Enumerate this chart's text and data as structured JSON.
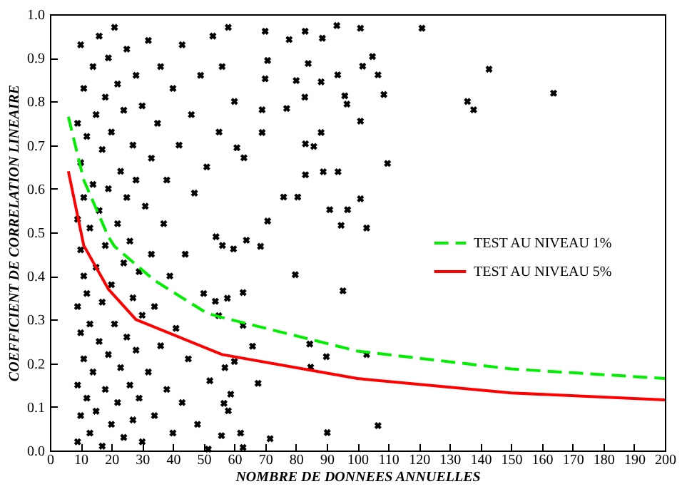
{
  "chart_data": {
    "type": "scatter",
    "xlabel": "NOMBRE DE DONNEES ANNUELLES",
    "ylabel": "COEFFICIENT DE CORRELATION LINEAIRE",
    "xlim": [
      0,
      200
    ],
    "ylim": [
      0,
      1
    ],
    "xticks": [
      0,
      10,
      20,
      30,
      40,
      50,
      60,
      70,
      80,
      90,
      100,
      110,
      120,
      130,
      140,
      150,
      160,
      170,
      180,
      190,
      200
    ],
    "yticks": [
      {
        "value": 0,
        "label": "0.0"
      },
      0.1,
      0.2,
      0.3,
      0.4,
      0.5,
      0.6,
      0.7,
      0.8,
      0.9,
      {
        "value": 1,
        "label": "1.0"
      }
    ],
    "grid": false,
    "legend": "right",
    "series": [
      {
        "type": "scatter",
        "marker": "cross",
        "color": "#000000",
        "x": [
          93.3,
          101,
          121,
          142.8,
          163.8,
          135.8,
          137.8,
          108.6,
          106.7,
          104.9,
          101.7,
          95.9,
          96.6,
          101,
          109.8,
          88.2,
          83.1,
          85.8,
          83.1,
          88.9,
          93.7,
          101,
          91,
          96.8,
          94.7,
          103,
          70.8,
          76,
          80.6,
          88.2,
          93.6,
          82.9,
          77,
          69,
          69,
          70,
          63.1,
          60.8,
          84,
          88.6,
          83,
          70.8,
          70,
          77.8,
          80.1,
          56.1,
          59.7,
          63.9,
          68.5,
          79.8,
          95.3,
          62.8,
          57.7,
          53.8,
          54.9,
          62.8,
          65.9,
          84.5,
          89.9,
          103,
          56.9,
          60,
          84.8,
          67.7,
          58.8,
          56.6,
          58,
          106.7,
          55.8,
          62,
          71.6,
          90.2,
          62.8,
          51.5,
          9,
          10,
          9,
          11,
          10,
          9,
          11,
          10,
          9,
          11,
          10,
          9,
          11,
          10,
          12,
          12,
          12,
          13,
          13,
          13,
          14,
          14,
          14,
          15,
          15,
          15,
          16,
          16,
          16,
          17,
          17,
          17,
          18,
          18,
          18,
          19,
          19,
          19,
          20,
          20,
          20,
          21,
          21,
          22,
          22,
          22,
          23,
          23,
          24,
          24,
          24,
          25,
          25,
          25,
          26,
          26,
          27,
          27,
          27,
          28,
          28,
          28,
          29,
          29,
          30,
          30,
          30,
          31,
          32,
          32,
          33,
          33,
          34,
          34,
          35,
          36,
          36,
          37,
          38,
          38,
          39,
          40,
          40,
          41,
          42,
          43,
          43,
          44,
          45,
          46,
          47,
          48,
          49,
          50,
          51,
          52,
          53,
          54,
          55,
          56,
          58,
          60
        ],
        "values": [
          0.974,
          0.968,
          0.968,
          0.874,
          0.819,
          0.8,
          0.781,
          0.816,
          0.861,
          0.903,
          0.881,
          0.813,
          0.794,
          0.755,
          0.658,
          0.729,
          0.703,
          0.697,
          0.632,
          0.639,
          0.639,
          0.577,
          0.552,
          0.552,
          0.516,
          0.51,
          0.526,
          0.581,
          0.581,
          0.845,
          0.861,
          0.81,
          0.784,
          0.781,
          0.729,
          0.852,
          0.671,
          0.694,
          0.887,
          0.945,
          0.961,
          0.894,
          0.961,
          0.942,
          0.848,
          0.47,
          0.462,
          0.482,
          0.468,
          0.403,
          0.366,
          0.362,
          0.349,
          0.342,
          0.309,
          0.287,
          0.239,
          0.244,
          0.215,
          0.22,
          0.19,
          0.204,
          0.191,
          0.154,
          0.129,
          0.108,
          0.091,
          0.057,
          0.034,
          0.04,
          0.027,
          0.041,
          0.007,
          0.003,
          0.02,
          0.08,
          0.15,
          0.21,
          0.27,
          0.33,
          0.4,
          0.46,
          0.53,
          0.58,
          0.66,
          0.75,
          0.83,
          0.93,
          0.12,
          0.36,
          0.72,
          0.04,
          0.29,
          0.51,
          0.18,
          0.61,
          0.88,
          0.09,
          0.42,
          0.77,
          0.25,
          0.55,
          0.95,
          0.01,
          0.34,
          0.69,
          0.14,
          0.47,
          0.81,
          0.22,
          0.6,
          0.9,
          0.06,
          0.38,
          0.73,
          0.29,
          0.97,
          0.11,
          0.52,
          0.84,
          0.19,
          0.64,
          0.03,
          0.43,
          0.78,
          0.26,
          0.58,
          0.92,
          0.15,
          0.48,
          0.07,
          0.35,
          0.7,
          0.23,
          0.62,
          0.86,
          0.12,
          0.41,
          0.02,
          0.31,
          0.79,
          0.56,
          0.18,
          0.94,
          0.45,
          0.67,
          0.08,
          0.33,
          0.75,
          0.24,
          0.88,
          0.52,
          0.14,
          0.62,
          0.4,
          0.04,
          0.83,
          0.28,
          0.7,
          0.11,
          0.93,
          0.45,
          0.21,
          0.77,
          0.59,
          0.06,
          0.86,
          0.36,
          0.65,
          0.16,
          0.95,
          0.49,
          0.73,
          0.88,
          0.97,
          0.8
        ]
      },
      {
        "type": "line",
        "name": "TEST AU NIVEAU 1%",
        "color": "#00ee00",
        "line_style": "dashed",
        "marker": "none",
        "x": [
          6,
          11,
          19,
          21,
          34,
          51,
          56,
          100,
          150,
          200
        ],
        "values": [
          0.765,
          0.62,
          0.49,
          0.468,
          0.39,
          0.315,
          0.305,
          0.228,
          0.187,
          0.165
        ]
      },
      {
        "type": "line",
        "name": "TEST AU NIVEAU 5%",
        "color": "#ff0000",
        "line_style": "solid",
        "marker": "none",
        "x": [
          6,
          11,
          19,
          28,
          56,
          100,
          150,
          200
        ],
        "values": [
          0.64,
          0.47,
          0.37,
          0.3,
          0.22,
          0.165,
          0.132,
          0.116
        ]
      }
    ]
  }
}
